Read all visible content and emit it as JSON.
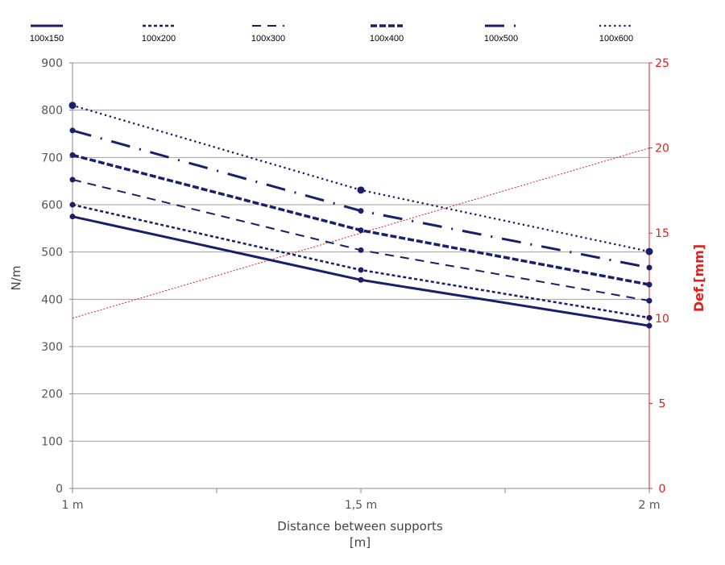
{
  "chart_data": {
    "type": "line",
    "title": "",
    "xlabel": "Distance between supports",
    "xlabel_unit": "[m]",
    "ylabel": "N/m",
    "y2label": "Def.[mm]",
    "categories": [
      "1 m",
      "1,5 m",
      "2 m"
    ],
    "x": [
      1,
      1.5,
      2
    ],
    "ylim": [
      0,
      900
    ],
    "yticks": [
      0,
      100,
      200,
      300,
      400,
      500,
      600,
      700,
      800,
      900
    ],
    "y2lim": [
      0,
      25
    ],
    "y2ticks": [
      0,
      5,
      10,
      15,
      20,
      25
    ],
    "grid": true,
    "legend_position": "top",
    "series": [
      {
        "name": "100x150",
        "values": [
          575,
          441,
          344
        ],
        "style": "solid",
        "color": "#1a1f6b"
      },
      {
        "name": "100x200",
        "values": [
          600,
          462,
          361
        ],
        "style": "short-dash",
        "color": "#1a1f6b"
      },
      {
        "name": "100x300",
        "values": [
          653,
          504,
          397
        ],
        "style": "long-dash",
        "color": "#1a1f6b"
      },
      {
        "name": "100x400",
        "values": [
          705,
          546,
          431
        ],
        "style": "heavy-dash",
        "color": "#1a1f6b"
      },
      {
        "name": "100x500",
        "values": [
          757,
          587,
          467
        ],
        "style": "dash-dot",
        "color": "#1a1f6b"
      },
      {
        "name": "100x600",
        "values": [
          810,
          631,
          501
        ],
        "style": "dot",
        "color": "#1a1f6b"
      }
    ],
    "deflection_series": {
      "axis": "right",
      "values": [
        10,
        15,
        20
      ],
      "color": "#e0201c",
      "style": "dot"
    }
  }
}
